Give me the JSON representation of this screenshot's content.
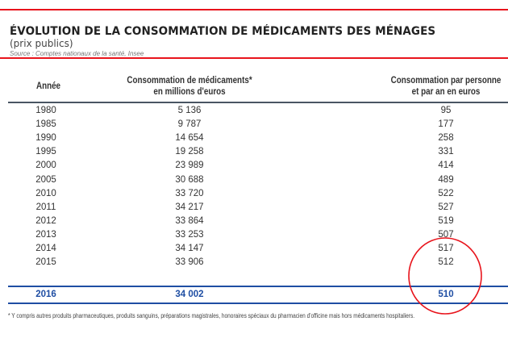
{
  "title": "ÉVOLUTION DE LA CONSOMMATION DE MÉDICAMENTS DES MÉNAGES",
  "subtitle": "(prix publics)",
  "source": "Source : Comptes nationaux de la santé, Insee",
  "headers": {
    "year": "Année",
    "total_l1": "Consommation de médicaments*",
    "total_l2": "en millions d'euros",
    "per_person_l1": "Consommation par personne",
    "per_person_l2": "et par an en euros"
  },
  "rows": [
    {
      "year": "1980",
      "total": "5 136",
      "per_person": "95"
    },
    {
      "year": "1985",
      "total": "9 787",
      "per_person": "177"
    },
    {
      "year": "1990",
      "total": "14 654",
      "per_person": "258"
    },
    {
      "year": "1995",
      "total": "19 258",
      "per_person": "331"
    },
    {
      "year": "2000",
      "total": "23 989",
      "per_person": "414"
    },
    {
      "year": "2005",
      "total": "30 688",
      "per_person": "489"
    },
    {
      "year": "2010",
      "total": "33 720",
      "per_person": "522"
    },
    {
      "year": "2011",
      "total": "34 217",
      "per_person": "527"
    },
    {
      "year": "2012",
      "total": "33 864",
      "per_person": "519"
    },
    {
      "year": "2013",
      "total": "33 253",
      "per_person": "507"
    },
    {
      "year": "2014",
      "total": "34 147",
      "per_person": "517"
    },
    {
      "year": "2015",
      "total": "33 906",
      "per_person": "512"
    },
    {
      "year": "2016",
      "total": "34 002",
      "per_person": "510"
    }
  ],
  "footnote": "* Y compris autres produits pharmaceutiques, produits sanguins, préparations magistrales, honoraires spéciaux du pharmacien d'officine mais hors médicaments hospitaliers.",
  "colors": {
    "accent_red": "#e8141c",
    "total_blue": "#1f4ea3"
  }
}
